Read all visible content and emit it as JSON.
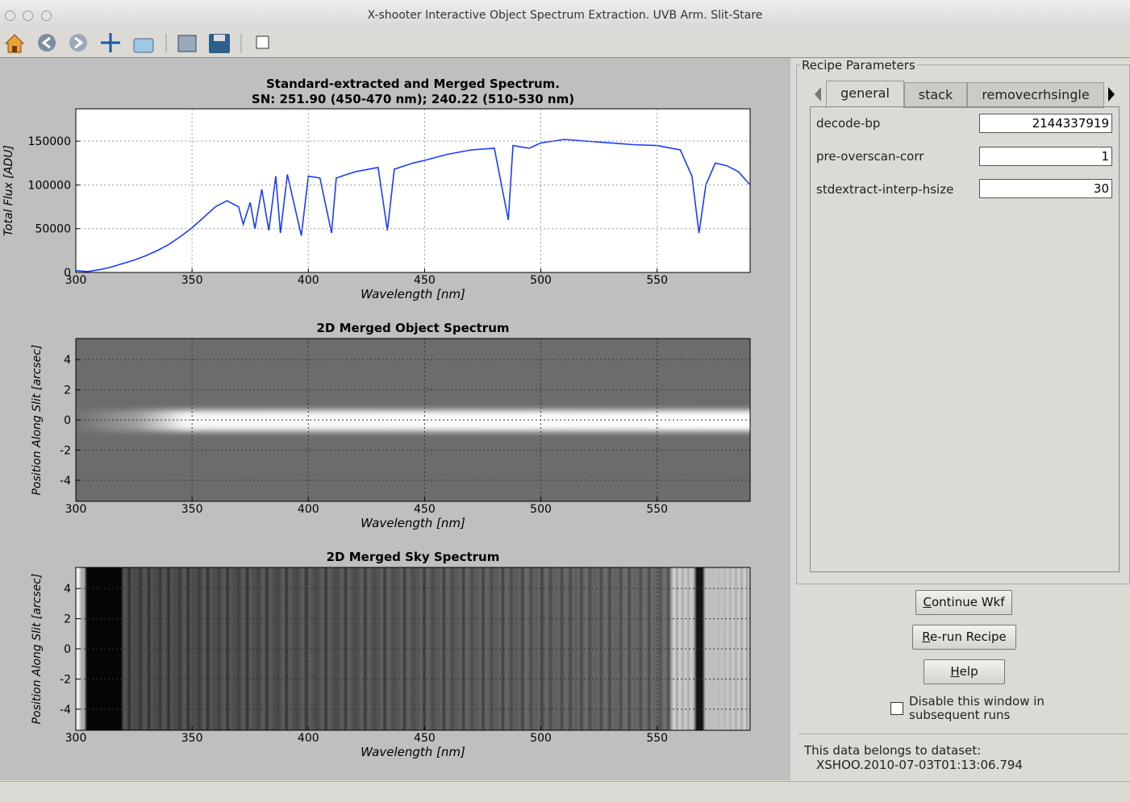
{
  "window": {
    "title": "X-shooter Interactive Object Spectrum Extraction. UVB Arm. Slit-Stare"
  },
  "chart_data": [
    {
      "type": "line",
      "title": "Standard-extracted and Merged Spectrum.",
      "subtitle": "SN: 251.90 (450-470 nm); 240.22 (510-530 nm)",
      "x_label": "Wavelength [nm]",
      "y_label": "Total Flux [ADU]",
      "x": [
        300,
        305,
        310,
        315,
        320,
        325,
        330,
        335,
        340,
        345,
        350,
        355,
        360,
        365,
        370,
        372,
        375,
        377,
        380,
        383,
        386,
        388,
        391,
        397,
        400,
        405,
        410,
        412,
        420,
        430,
        434,
        437,
        445,
        450,
        460,
        470,
        480,
        486,
        488,
        495,
        500,
        510,
        520,
        530,
        540,
        550,
        560,
        565,
        568,
        571,
        575,
        580,
        585,
        590
      ],
      "values": [
        2000,
        1000,
        3000,
        6000,
        10000,
        14000,
        19000,
        25000,
        32000,
        41000,
        51000,
        63000,
        75000,
        82000,
        75000,
        55000,
        80000,
        50000,
        95000,
        48000,
        110000,
        45000,
        112000,
        42000,
        110000,
        108000,
        45000,
        108000,
        115000,
        120000,
        48000,
        118000,
        125000,
        128000,
        135000,
        140000,
        142000,
        60000,
        145000,
        142000,
        148000,
        152000,
        150000,
        148000,
        146000,
        145000,
        140000,
        110000,
        45000,
        100000,
        125000,
        122000,
        115000,
        100000
      ],
      "color": "#1a3cff",
      "xlim": [
        300,
        590
      ],
      "ylim": [
        0,
        187000
      ],
      "xticks": [
        300,
        350,
        400,
        450,
        500,
        550
      ],
      "yticks": [
        0,
        50000,
        100000,
        150000
      ],
      "grid": true
    },
    {
      "type": "image",
      "title": "2D Merged Object Spectrum",
      "x_label": "Wavelength [nm]",
      "y_label": "Position Along Slit [arcsec]",
      "xlim": [
        300,
        590
      ],
      "ylim": [
        -5.4,
        5.4
      ],
      "xticks": [
        300,
        350,
        400,
        450,
        500,
        550
      ],
      "yticks": [
        -4,
        -2,
        0,
        2,
        4
      ],
      "grid": true
    },
    {
      "type": "image",
      "title": "2D Merged Sky Spectrum",
      "x_label": "Wavelength [nm]",
      "y_label": "Position Along Slit [arcsec]",
      "xlim": [
        300,
        590
      ],
      "ylim": [
        -5.4,
        5.4
      ],
      "xticks": [
        300,
        350,
        400,
        450,
        500,
        550
      ],
      "yticks": [
        -4,
        -2,
        0,
        2,
        4
      ],
      "grid": true
    }
  ],
  "panel": {
    "group_title": "Recipe Parameters",
    "tabs": [
      "general",
      "stack",
      "removecrhsingle"
    ],
    "parameters": [
      {
        "name": "decode-bp",
        "value": "2144337919"
      },
      {
        "name": "pre-overscan-corr",
        "value": "1"
      },
      {
        "name": "stdextract-interp-hsize",
        "value": "30"
      }
    ],
    "buttons": [
      "Continue Wkf",
      "Re-run Recipe",
      "Help"
    ],
    "checkbox_label": "Disable this window in subsequent runs",
    "dataset_label": "This data belongs to dataset:",
    "dataset": "XSHOO.2010-07-03T01:13:06.794"
  }
}
